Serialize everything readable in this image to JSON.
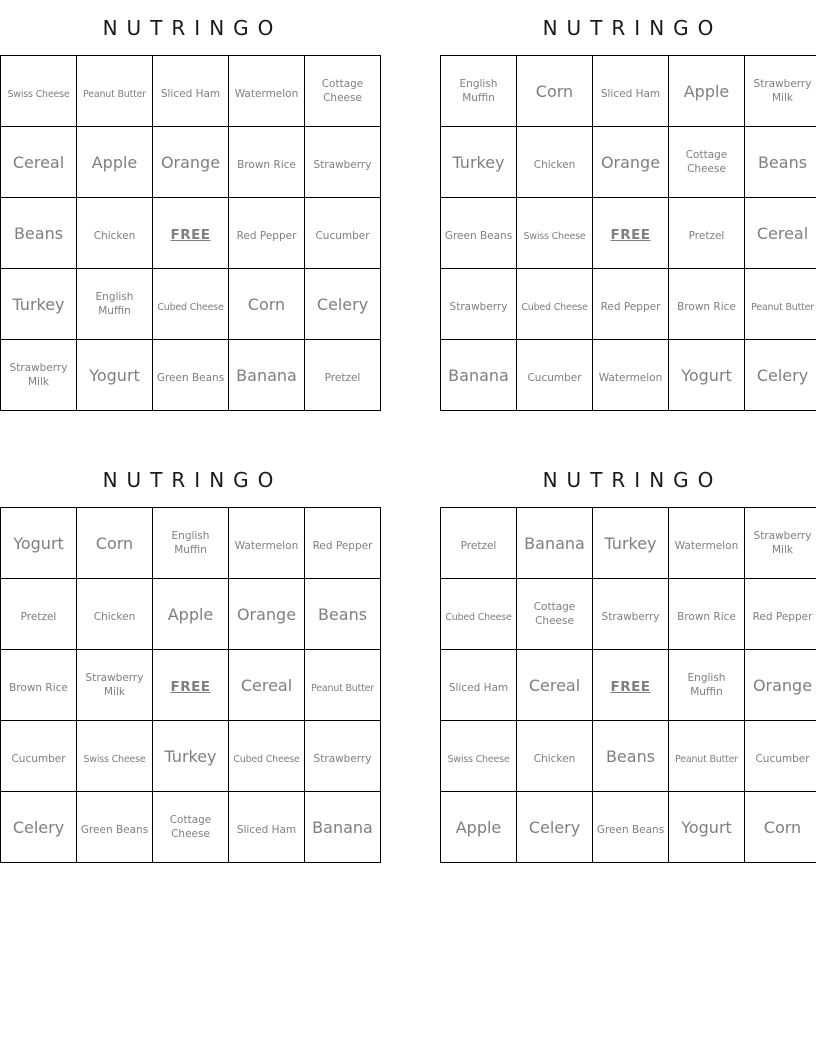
{
  "document": {
    "game_title": "NUTRINGO",
    "free_space_label": "FREE"
  },
  "colors": {
    "page_background": "#ffffff",
    "title_text": "#1a1a1a",
    "cell_text": "#7f7f7f",
    "grid_line": "#000000"
  },
  "cards": [
    {
      "title": "NUTRINGO",
      "rows": [
        [
          "Swiss Cheese",
          "Peanut Butter",
          "Sliced Ham",
          "Watermelon",
          "Cottage Cheese"
        ],
        [
          "Cereal",
          "Apple",
          "Orange",
          "Brown Rice",
          "Strawberry"
        ],
        [
          "Beans",
          "Chicken",
          "FREE",
          "Red Pepper",
          "Cucumber"
        ],
        [
          "Turkey",
          "English Muffin",
          "Cubed Cheese",
          "Corn",
          "Celery"
        ],
        [
          "Strawberry Milk",
          "Yogurt",
          "Green Beans",
          "Banana",
          "Pretzel"
        ]
      ]
    },
    {
      "title": "NUTRINGO",
      "rows": [
        [
          "English Muffin",
          "Corn",
          "Sliced Ham",
          "Apple",
          "Strawberry Milk"
        ],
        [
          "Turkey",
          "Chicken",
          "Orange",
          "Cottage Cheese",
          "Beans"
        ],
        [
          "Green Beans",
          "Swiss Cheese",
          "FREE",
          "Pretzel",
          "Cereal"
        ],
        [
          "Strawberry",
          "Cubed Cheese",
          "Red Pepper",
          "Brown Rice",
          "Peanut Butter"
        ],
        [
          "Banana",
          "Cucumber",
          "Watermelon",
          "Yogurt",
          "Celery"
        ]
      ]
    },
    {
      "title": "NUTRINGO",
      "rows": [
        [
          "Yogurt",
          "Corn",
          "English Muffin",
          "Watermelon",
          "Red Pepper"
        ],
        [
          "Pretzel",
          "Chicken",
          "Apple",
          "Orange",
          "Beans"
        ],
        [
          "Brown Rice",
          "Strawberry Milk",
          "FREE",
          "Cereal",
          "Peanut Butter"
        ],
        [
          "Cucumber",
          "Swiss Cheese",
          "Turkey",
          "Cubed Cheese",
          "Strawberry"
        ],
        [
          "Celery",
          "Green Beans",
          "Cottage Cheese",
          "Sliced Ham",
          "Banana"
        ]
      ]
    },
    {
      "title": "NUTRINGO",
      "rows": [
        [
          "Pretzel",
          "Banana",
          "Turkey",
          "Watermelon",
          "Strawberry Milk"
        ],
        [
          "Cubed Cheese",
          "Cottage Cheese",
          "Strawberry",
          "Brown Rice",
          "Red Pepper"
        ],
        [
          "Sliced Ham",
          "Cereal",
          "FREE",
          "English Muffin",
          "Orange"
        ],
        [
          "Swiss Cheese",
          "Chicken",
          "Beans",
          "Peanut Butter",
          "Cucumber"
        ],
        [
          "Apple",
          "Celery",
          "Green Beans",
          "Yogurt",
          "Corn"
        ]
      ]
    }
  ]
}
